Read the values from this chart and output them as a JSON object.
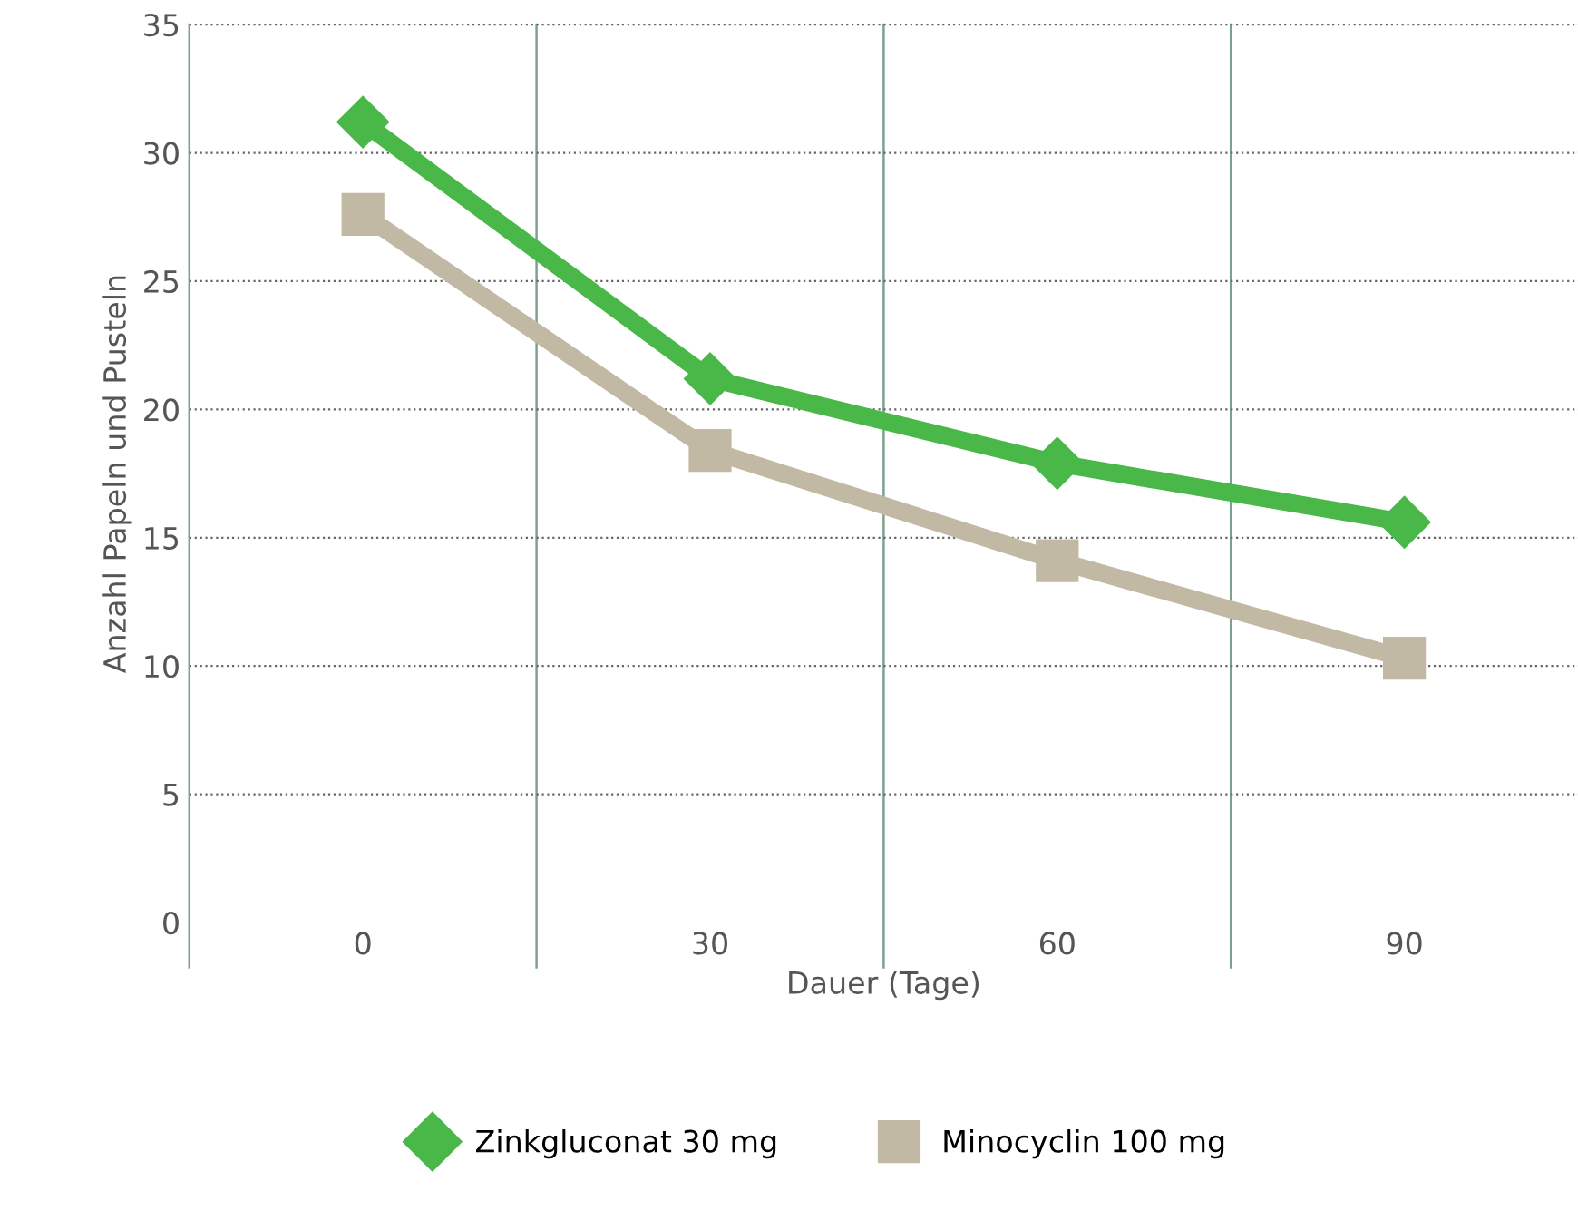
{
  "chart_data": {
    "type": "line",
    "xlabel": "Dauer (Tage)",
    "ylabel": "Anzahl Papeln und Pusteln",
    "categories": [
      "0",
      "30",
      "60",
      "90"
    ],
    "series": [
      {
        "name": "Zinkgluconat 30 mg",
        "color": "#4ab749",
        "marker": "diamond",
        "values": [
          31.2,
          21.2,
          17.9,
          15.6
        ]
      },
      {
        "name": "Minocyclin 100 mg",
        "color": "#c2b9a5",
        "marker": "square",
        "values": [
          27.6,
          18.4,
          14.1,
          10.3
        ]
      }
    ],
    "ylim": [
      0,
      35
    ],
    "yticks": [
      0,
      5,
      10,
      15,
      20,
      25,
      30,
      35
    ],
    "grid": true,
    "legend": "bottom",
    "line_style": "solid"
  }
}
